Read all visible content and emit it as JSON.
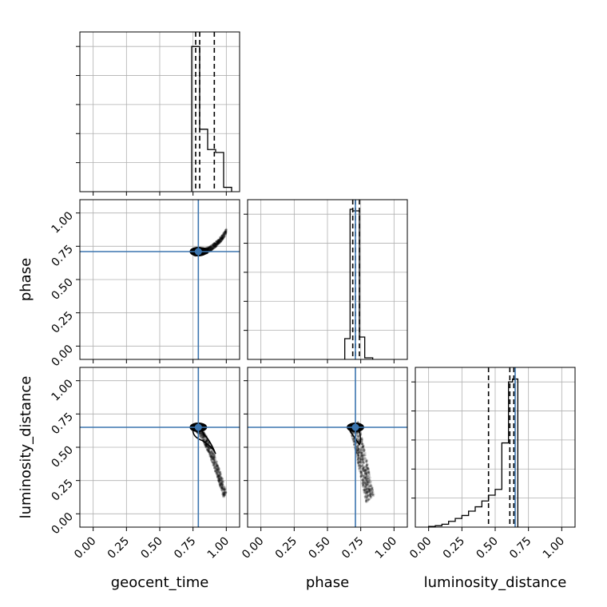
{
  "chart_data": {
    "type": "corner",
    "parameters": [
      "geocent_time",
      "phase",
      "luminosity_distance"
    ],
    "truths": [
      0.79,
      0.71,
      0.65
    ],
    "limits": [
      [
        -0.1,
        1.1
      ],
      [
        -0.1,
        1.1
      ],
      [
        -0.1,
        1.1
      ]
    ],
    "ticks": [
      0.0,
      0.25,
      0.5,
      0.75,
      1.0
    ],
    "tick_labels": [
      "0.00",
      "0.25",
      "0.50",
      "0.75",
      "1.00"
    ],
    "grid": true,
    "colors": {
      "truth": "#3b75af",
      "hist": "#000000",
      "quantile": "#000000",
      "grid": "#b0b0b0",
      "points": "#000000"
    },
    "histograms": [
      {
        "parameter": "geocent_time",
        "quantiles": [
          0.77,
          0.8,
          0.91
        ],
        "bin_edges": [
          0.74,
          0.8,
          0.86,
          0.92,
          0.98,
          1.04
        ],
        "counts": [
          100,
          43,
          29,
          27,
          3
        ],
        "y_max": 110
      },
      {
        "parameter": "phase",
        "quantiles": [
          0.69,
          0.71,
          0.74
        ],
        "bin_edges": [
          0.63,
          0.67,
          0.69,
          0.71,
          0.74,
          0.78,
          0.84
        ],
        "counts": [
          13,
          94,
          93,
          93,
          14,
          1
        ],
        "y_max": 100
      },
      {
        "parameter": "luminosity_distance",
        "quantiles": [
          0.45,
          0.61,
          0.64
        ],
        "bin_edges": [
          0.0,
          0.05,
          0.1,
          0.15,
          0.2,
          0.25,
          0.3,
          0.35,
          0.4,
          0.45,
          0.5,
          0.55,
          0.6,
          0.63,
          0.67
        ],
        "counts": [
          0.5,
          1,
          2,
          4,
          6,
          8,
          11,
          14,
          18,
          22,
          26,
          58,
          100,
          102
        ],
        "y_max": 110
      }
    ],
    "scatter_panels": [
      {
        "x": "geocent_time",
        "y": "phase"
      },
      {
        "x": "geocent_time",
        "y": "luminosity_distance"
      },
      {
        "x": "phase",
        "y": "luminosity_distance"
      }
    ]
  }
}
